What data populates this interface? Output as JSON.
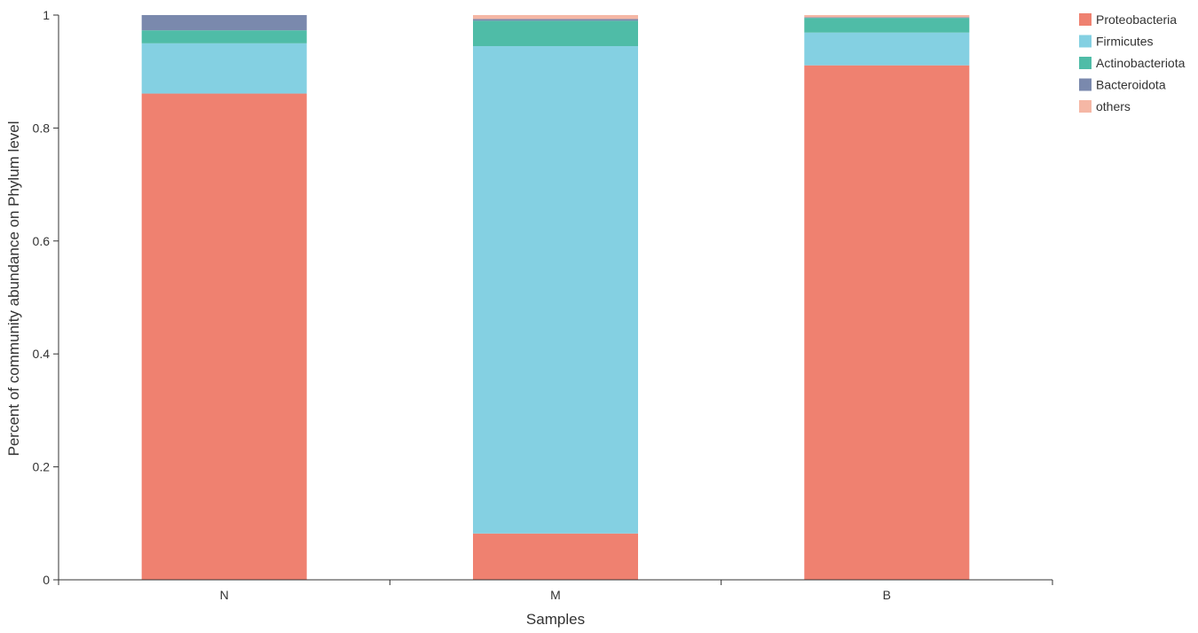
{
  "chart_data": {
    "type": "bar",
    "stacked": true,
    "categories": [
      "N",
      "M",
      "B"
    ],
    "series": [
      {
        "name": "Proteobacteria",
        "color": "#ef8170",
        "values": [
          0.861,
          0.082,
          0.911
        ]
      },
      {
        "name": "Firmicutes",
        "color": "#84d0e2",
        "values": [
          0.089,
          0.863,
          0.058
        ]
      },
      {
        "name": "Actinobacteriota",
        "color": "#4fbca7",
        "values": [
          0.023,
          0.045,
          0.026
        ]
      },
      {
        "name": "Bacteroidota",
        "color": "#7a89ad",
        "values": [
          0.027,
          0.003,
          0.001
        ]
      },
      {
        "name": "others",
        "color": "#f5b7a5",
        "values": [
          0.0,
          0.007,
          0.004
        ]
      }
    ],
    "xlabel": "Samples",
    "ylabel": "Percent of community abundance on Phylum level",
    "ylim": [
      0,
      1
    ],
    "yticks": [
      {
        "value": 0,
        "label": "0"
      },
      {
        "value": 0.2,
        "label": "0.2"
      },
      {
        "value": 0.4,
        "label": "0.4"
      },
      {
        "value": 0.6,
        "label": "0.6"
      },
      {
        "value": 0.8,
        "label": "0.8"
      },
      {
        "value": 1,
        "label": "1"
      }
    ],
    "grid": false,
    "legend_position": "top-right"
  }
}
